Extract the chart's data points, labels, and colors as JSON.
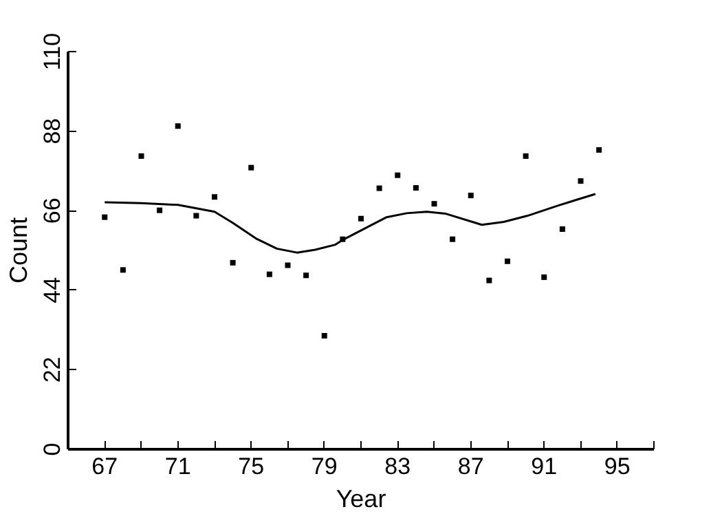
{
  "chart_data": {
    "type": "scatter",
    "xlabel": "Year",
    "ylabel": "Count",
    "xlim": [
      65,
      97
    ],
    "ylim": [
      0,
      110
    ],
    "xticks": [
      67,
      {
        "value": 69,
        "label": null
      },
      71,
      {
        "value": 73,
        "label": null
      },
      75,
      {
        "value": 77,
        "label": null
      },
      79,
      {
        "value": 81,
        "label": null
      },
      83,
      {
        "value": 85,
        "label": null
      },
      87,
      {
        "value": 89,
        "label": null
      },
      91,
      {
        "value": 93,
        "label": null
      },
      95,
      {
        "value": 97,
        "label": null
      }
    ],
    "yticks": [
      0,
      22,
      44,
      66,
      88,
      110
    ],
    "grid": false,
    "marker": "square",
    "series": [
      {
        "color": "#000000",
        "x": [
          67,
          68,
          69,
          70,
          71,
          72,
          73,
          74,
          75,
          76,
          77,
          78,
          79,
          80,
          81,
          82,
          83,
          84,
          85,
          86,
          87,
          88,
          89,
          90,
          91,
          92,
          93,
          94
        ],
        "values": [
          64.2,
          49.6,
          81.1,
          66.1,
          89.4,
          64.6,
          69.8,
          51.6,
          77.9,
          48.4,
          50.9,
          48.1,
          31.4,
          58.1,
          63.8,
          72.2,
          75.8,
          72.3,
          67.9,
          58.1,
          70.2,
          46.7,
          52.0,
          81.1,
          47.6,
          60.9,
          74.2,
          82.8
        ]
      },
      {
        "type": "line",
        "marker": "none",
        "color": "#000000",
        "x": [
          67,
          69,
          71,
          73,
          74,
          75.3,
          76.4,
          77.5,
          78.5,
          79.6,
          80,
          82.4,
          83.5,
          84.6,
          85.6,
          87.6,
          88.8,
          90.1,
          91.7,
          92.7,
          93.8
        ],
        "values": [
          68.3,
          68.1,
          67.6,
          65.7,
          62.6,
          58.2,
          55.5,
          54.4,
          55.2,
          56.6,
          57.9,
          64.2,
          65.3,
          65.7,
          65.2,
          62.1,
          62.9,
          64.6,
          67.3,
          68.9,
          70.6
        ]
      }
    ]
  }
}
